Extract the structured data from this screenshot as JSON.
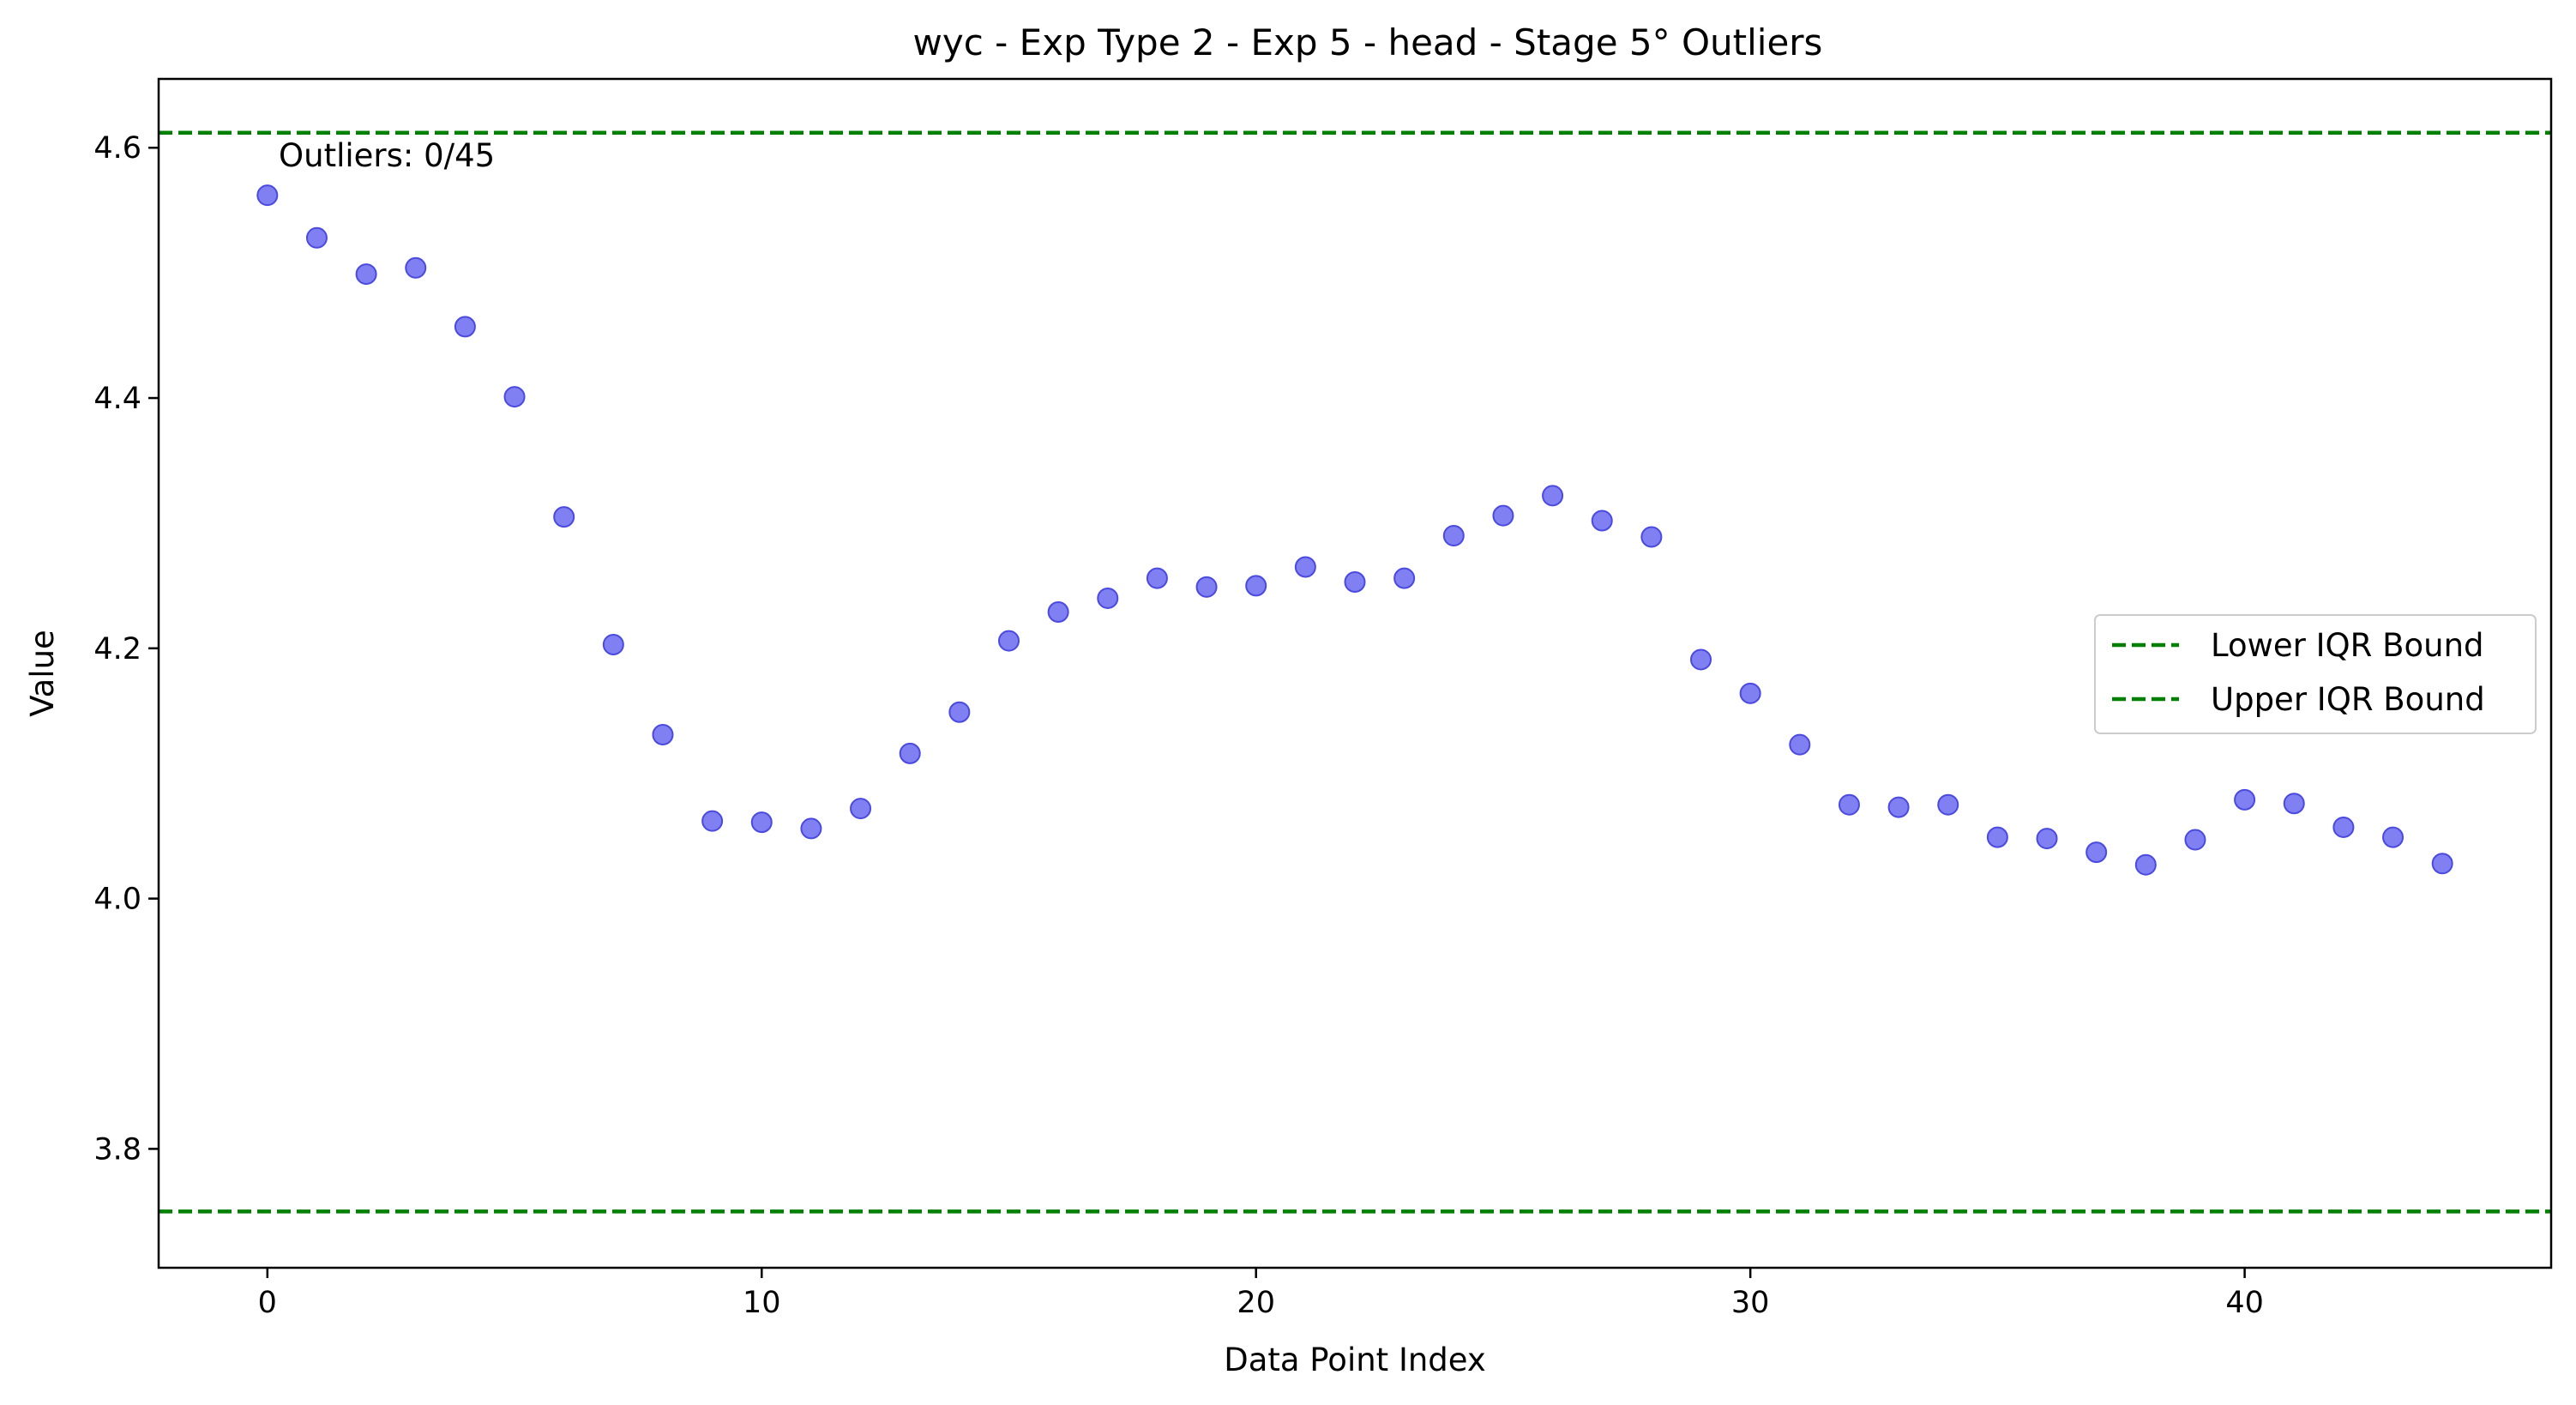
{
  "chart_data": {
    "type": "scatter",
    "title": "wyc - Exp Type 2 - Exp 5 - head - Stage 5° Outliers",
    "xlabel": "Data Point Index",
    "ylabel": "Value",
    "xlim": [
      -2.2,
      46.2
    ],
    "ylim": [
      3.705,
      4.655
    ],
    "xticks": [
      0,
      10,
      20,
      30,
      40
    ],
    "yticks": [
      3.8,
      4.0,
      4.2,
      4.4,
      4.6
    ],
    "ytick_labels": [
      "3.8",
      "4.0",
      "4.2",
      "4.4",
      "4.6"
    ],
    "grid": false,
    "legend_position": "center-right",
    "point_color": "#6a6af0",
    "point_edge_color": "#4a4ae0",
    "bound_color": "#008000",
    "annotation": "Outliers: 0/45",
    "series": [
      {
        "values_x": [
          0,
          1,
          2,
          3,
          4,
          5,
          6,
          7,
          8,
          9,
          10,
          11,
          12,
          13,
          14,
          15,
          16,
          17,
          18,
          19,
          20,
          21,
          22,
          23,
          24,
          25,
          26,
          27,
          28,
          29,
          30,
          31,
          32,
          33,
          34,
          35,
          36,
          37,
          38,
          39,
          40,
          41,
          42,
          43,
          44
        ],
        "values_y": [
          4.562,
          4.528,
          4.499,
          4.504,
          4.457,
          4.401,
          4.305,
          4.203,
          4.131,
          4.062,
          4.061,
          4.056,
          4.072,
          4.116,
          4.149,
          4.206,
          4.229,
          4.24,
          4.256,
          4.249,
          4.25,
          4.265,
          4.253,
          4.256,
          4.29,
          4.306,
          4.322,
          4.302,
          4.289,
          4.191,
          4.164,
          4.123,
          4.075,
          4.073,
          4.075,
          4.049,
          4.048,
          4.037,
          4.027,
          4.047,
          4.079,
          4.076,
          4.057,
          4.049,
          4.028
        ]
      }
    ],
    "bounds": [
      {
        "name": "Lower IQR Bound",
        "value": 3.75
      },
      {
        "name": "Upper IQR Bound",
        "value": 4.612
      }
    ]
  }
}
